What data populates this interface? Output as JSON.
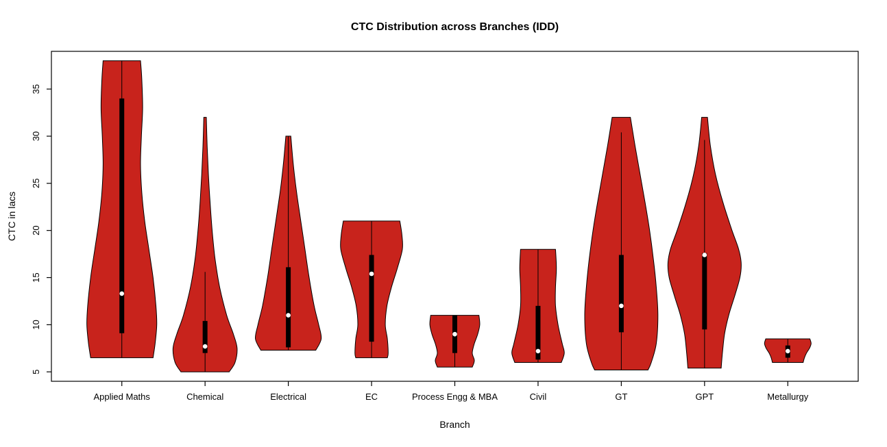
{
  "chart_data": {
    "type": "violin",
    "title": "CTC Distribution across Branches (IDD)",
    "xlabel": "Branch",
    "ylabel": "CTC in lacs",
    "ylim": [
      4,
      39
    ],
    "yticks": [
      5,
      10,
      15,
      20,
      25,
      30,
      35
    ],
    "grid": false,
    "legend": "none",
    "categories": [
      "Applied Maths",
      "Chemical",
      "Electrical",
      "EC",
      "Process Engg & MBA",
      "Civil",
      "GT",
      "GPT",
      "Metallurgy"
    ],
    "violin_fill": "#C8231C",
    "violin_stroke": "#000000",
    "median_dot_color": "#ffffff",
    "violins": [
      {
        "category": "Applied Maths",
        "min": 6.5,
        "max": 38,
        "median": 13.3,
        "q1": 9.1,
        "q3": 34,
        "whisker_low": 6.5,
        "whisker_high": 38,
        "profile": [
          [
            38,
            0.45
          ],
          [
            36,
            0.48
          ],
          [
            33,
            0.5
          ],
          [
            30,
            0.47
          ],
          [
            27,
            0.45
          ],
          [
            24,
            0.48
          ],
          [
            21,
            0.55
          ],
          [
            18,
            0.65
          ],
          [
            15,
            0.75
          ],
          [
            12,
            0.82
          ],
          [
            10,
            0.84
          ],
          [
            8,
            0.8
          ],
          [
            6.5,
            0.75
          ]
        ]
      },
      {
        "category": "Chemical",
        "min": 5,
        "max": 32,
        "median": 7.7,
        "q1": 7.0,
        "q3": 10.4,
        "whisker_low": 5,
        "whisker_high": 15.6,
        "profile": [
          [
            32,
            0.03
          ],
          [
            29,
            0.05
          ],
          [
            26,
            0.08
          ],
          [
            23,
            0.12
          ],
          [
            20,
            0.17
          ],
          [
            17,
            0.24
          ],
          [
            14,
            0.35
          ],
          [
            11,
            0.52
          ],
          [
            9,
            0.68
          ],
          [
            7.5,
            0.77
          ],
          [
            6,
            0.72
          ],
          [
            5,
            0.58
          ]
        ]
      },
      {
        "category": "Electrical",
        "min": 7.3,
        "max": 30,
        "median": 11.0,
        "q1": 7.6,
        "q3": 16.1,
        "whisker_low": 7.3,
        "whisker_high": 30,
        "profile": [
          [
            30,
            0.06
          ],
          [
            27,
            0.12
          ],
          [
            24,
            0.2
          ],
          [
            21,
            0.3
          ],
          [
            18,
            0.4
          ],
          [
            15,
            0.5
          ],
          [
            12,
            0.62
          ],
          [
            10,
            0.73
          ],
          [
            8.5,
            0.79
          ],
          [
            7.3,
            0.66
          ]
        ]
      },
      {
        "category": "EC",
        "min": 6.5,
        "max": 21,
        "median": 15.4,
        "q1": 8.2,
        "q3": 17.4,
        "whisker_low": 6.5,
        "whisker_high": 21,
        "profile": [
          [
            21,
            0.68
          ],
          [
            19.5,
            0.73
          ],
          [
            18,
            0.74
          ],
          [
            16,
            0.62
          ],
          [
            14,
            0.48
          ],
          [
            12,
            0.37
          ],
          [
            10,
            0.33
          ],
          [
            8.5,
            0.38
          ],
          [
            7,
            0.4
          ],
          [
            6.5,
            0.38
          ]
        ]
      },
      {
        "category": "Process Engg & MBA",
        "min": 5.5,
        "max": 11,
        "median": 9.0,
        "q1": 7.0,
        "q3": 11.0,
        "whisker_low": 5.5,
        "whisker_high": 11,
        "profile": [
          [
            11,
            0.58
          ],
          [
            10,
            0.6
          ],
          [
            9,
            0.55
          ],
          [
            8,
            0.47
          ],
          [
            7,
            0.42
          ],
          [
            6.2,
            0.47
          ],
          [
            5.5,
            0.42
          ]
        ]
      },
      {
        "category": "Civil",
        "min": 6,
        "max": 18,
        "median": 7.2,
        "q1": 6.3,
        "q3": 12.0,
        "whisker_low": 6,
        "whisker_high": 18,
        "profile": [
          [
            18,
            0.42
          ],
          [
            16,
            0.44
          ],
          [
            14,
            0.42
          ],
          [
            12,
            0.42
          ],
          [
            10,
            0.48
          ],
          [
            8,
            0.58
          ],
          [
            7,
            0.63
          ],
          [
            6,
            0.56
          ]
        ]
      },
      {
        "category": "GT",
        "min": 5.2,
        "max": 32,
        "median": 12.0,
        "q1": 9.2,
        "q3": 17.4,
        "whisker_low": 5.2,
        "whisker_high": 30.4,
        "profile": [
          [
            32,
            0.22
          ],
          [
            29,
            0.33
          ],
          [
            26,
            0.45
          ],
          [
            23,
            0.57
          ],
          [
            20,
            0.68
          ],
          [
            17,
            0.77
          ],
          [
            14,
            0.84
          ],
          [
            11,
            0.88
          ],
          [
            8,
            0.84
          ],
          [
            6,
            0.72
          ],
          [
            5.2,
            0.64
          ]
        ]
      },
      {
        "category": "GPT",
        "min": 5.4,
        "max": 32,
        "median": 17.4,
        "q1": 9.5,
        "q3": 17.6,
        "whisker_low": 5.4,
        "whisker_high": 29.6,
        "profile": [
          [
            32,
            0.07
          ],
          [
            29,
            0.14
          ],
          [
            26,
            0.26
          ],
          [
            23,
            0.44
          ],
          [
            20,
            0.66
          ],
          [
            18,
            0.82
          ],
          [
            16.5,
            0.88
          ],
          [
            15,
            0.85
          ],
          [
            13,
            0.72
          ],
          [
            11,
            0.58
          ],
          [
            9,
            0.48
          ],
          [
            7,
            0.43
          ],
          [
            5.4,
            0.4
          ]
        ]
      },
      {
        "category": "Metallurgy",
        "min": 6,
        "max": 8.5,
        "median": 7.2,
        "q1": 6.5,
        "q3": 7.8,
        "whisker_low": 6,
        "whisker_high": 8.5,
        "profile": [
          [
            8.5,
            0.53
          ],
          [
            8,
            0.56
          ],
          [
            7.5,
            0.52
          ],
          [
            7,
            0.45
          ],
          [
            6.5,
            0.4
          ],
          [
            6,
            0.37
          ]
        ]
      }
    ]
  }
}
